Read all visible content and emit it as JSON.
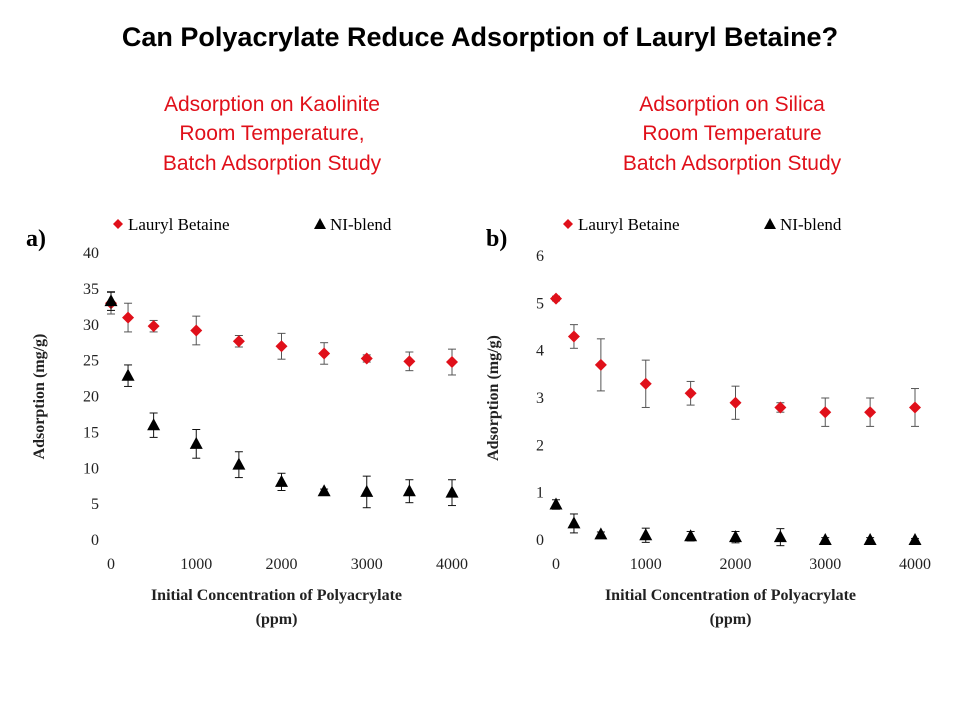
{
  "title": "Can Polyacrylate Reduce Adsorption of Lauryl Betaine?",
  "captions": [
    [
      "Adsorption on Kaolinite",
      "Room Temperature,",
      "Batch Adsorption Study"
    ],
    [
      "Adsorption on Silica",
      "Room Temperature",
      "Batch Adsorption Study"
    ]
  ],
  "colors": {
    "caption": "#e0101a",
    "lauryl_betaine": "#e0101a",
    "ni_blend": "#000000"
  },
  "chart_data": [
    {
      "type": "scatter",
      "panel": "a)",
      "xlabel": [
        "Initial Concentration of Polyacrylate",
        "(ppm)"
      ],
      "ylabel": "Adsorption (mg/g)",
      "xlim": [
        0,
        4000
      ],
      "ylim": [
        0,
        40
      ],
      "xticks": [
        0,
        1000,
        2000,
        3000,
        4000
      ],
      "yticks": [
        0,
        5,
        10,
        15,
        20,
        25,
        30,
        35,
        40
      ],
      "grid": false,
      "legend_position": "top",
      "series": [
        {
          "name": "Lauryl Betaine",
          "marker": "diamond",
          "color": "#e0101a",
          "x": [
            0,
            200,
            500,
            1000,
            1500,
            2000,
            2500,
            3000,
            3500,
            4000
          ],
          "y": [
            33.0,
            31.0,
            29.8,
            29.2,
            27.7,
            27.0,
            26.0,
            25.3,
            24.9,
            24.8
          ],
          "err": [
            1.5,
            2.0,
            0.8,
            2.0,
            0.8,
            1.8,
            1.5,
            0.5,
            1.3,
            1.8
          ]
        },
        {
          "name": "NI-blend",
          "marker": "triangle",
          "color": "#000000",
          "x": [
            0,
            200,
            500,
            1000,
            1500,
            2000,
            2500,
            3000,
            3500,
            4000
          ],
          "y": [
            33.3,
            22.9,
            16.0,
            13.4,
            10.5,
            8.1,
            6.8,
            6.7,
            6.8,
            6.6
          ],
          "err": [
            1.3,
            1.5,
            1.7,
            2.0,
            1.8,
            1.2,
            0.3,
            2.2,
            1.6,
            1.8
          ]
        }
      ]
    },
    {
      "type": "scatter",
      "panel": "b)",
      "xlabel": [
        "Initial Concentration of Polyacrylate",
        "(ppm)"
      ],
      "ylabel": "Adsorption (mg/g)",
      "xlim": [
        0,
        4000
      ],
      "ylim": [
        0,
        6
      ],
      "xticks": [
        0,
        1000,
        2000,
        3000,
        4000
      ],
      "yticks": [
        0,
        1,
        2,
        3,
        4,
        5,
        6
      ],
      "grid": false,
      "legend_position": "top",
      "series": [
        {
          "name": "Lauryl Betaine",
          "marker": "diamond",
          "color": "#e0101a",
          "x": [
            0,
            200,
            500,
            1000,
            1500,
            2000,
            2500,
            3000,
            3500,
            4000
          ],
          "y": [
            5.1,
            4.3,
            3.7,
            3.3,
            3.1,
            2.9,
            2.8,
            2.7,
            2.7,
            2.8
          ],
          "err": [
            0.05,
            0.25,
            0.55,
            0.5,
            0.25,
            0.35,
            0.1,
            0.3,
            0.3,
            0.4
          ]
        },
        {
          "name": "NI-blend",
          "marker": "triangle",
          "color": "#000000",
          "x": [
            0,
            200,
            500,
            1000,
            1500,
            2000,
            2500,
            3000,
            3500,
            4000
          ],
          "y": [
            0.75,
            0.35,
            0.12,
            0.1,
            0.08,
            0.06,
            0.06,
            0.0,
            0.0,
            0.0
          ],
          "err": [
            0.1,
            0.2,
            0.05,
            0.15,
            0.1,
            0.12,
            0.18,
            0.05,
            0.05,
            0.03
          ]
        }
      ]
    }
  ]
}
